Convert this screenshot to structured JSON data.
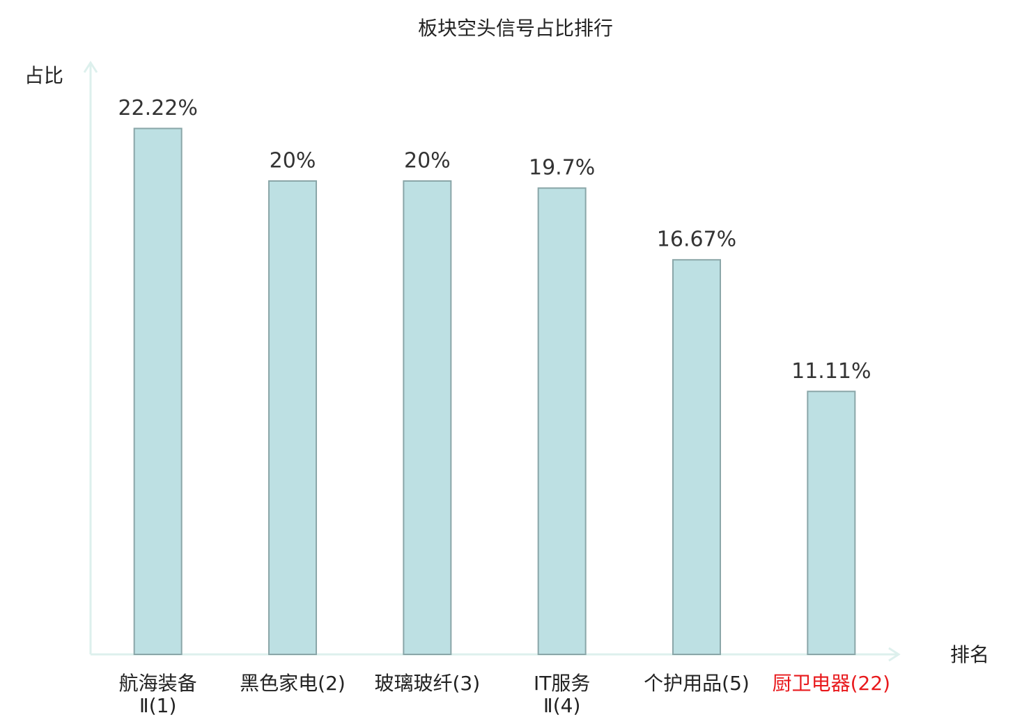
{
  "chart_data": {
    "type": "bar",
    "title": "板块空头信号占比排行",
    "y_label": "占比",
    "x_label": "排名",
    "categories": [
      "航海装备\nⅡ(1)",
      "黑色家电(2)",
      "玻璃玻纤(3)",
      "IT服务\nⅡ(4)",
      "个护用品(5)",
      "厨卫电器(22)"
    ],
    "category_colors": [
      "#222222",
      "#222222",
      "#222222",
      "#222222",
      "#222222",
      "#e8191c"
    ],
    "values": [
      22.22,
      20,
      20,
      19.7,
      16.67,
      11.11
    ],
    "value_labels": [
      "22.22%",
      "20%",
      "20%",
      "19.7%",
      "16.67%",
      "11.11%"
    ],
    "color": "#bde0e3",
    "edge_color": "#8aa6a8",
    "axis_color": "#ddf0ed",
    "ylim": [
      0,
      25
    ]
  }
}
